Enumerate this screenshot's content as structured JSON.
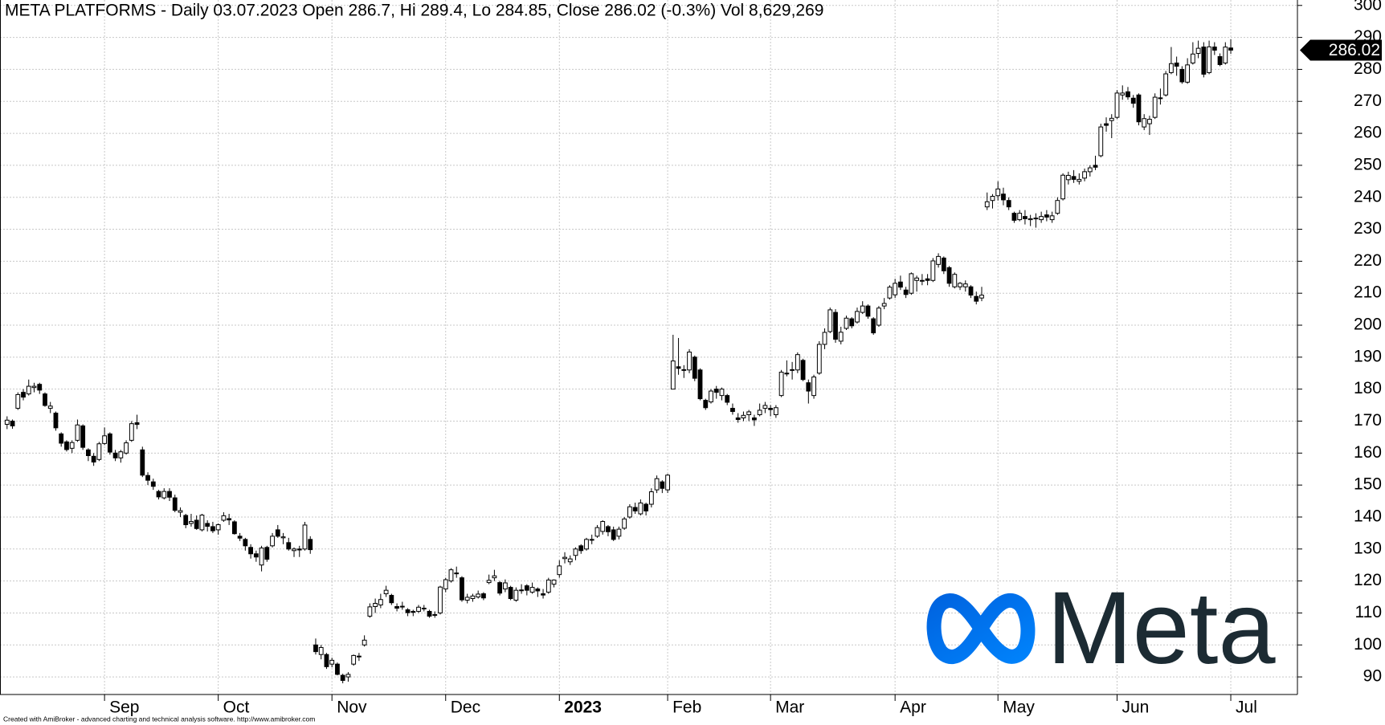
{
  "chart_data": {
    "type": "candlestick",
    "title": "META PLATFORMS - Daily 03.07.2023 Open 286.7, Hi 289.4, Lo 284.85, Close 286.02 (-0.3%) Vol 8,629,269",
    "footer": "Created with AmiBroker - advanced charting and technical analysis software. http://www.amibroker.com",
    "logo_text": "Meta",
    "categories": [
      null,
      null,
      null,
      null,
      null,
      null,
      null,
      null,
      null,
      null,
      null,
      null,
      null,
      null,
      null,
      null,
      null,
      null,
      "Sep",
      null,
      null,
      null,
      null,
      null,
      null,
      null,
      null,
      null,
      null,
      null,
      null,
      null,
      null,
      null,
      null,
      null,
      null,
      null,
      null,
      "Oct",
      null,
      null,
      null,
      null,
      null,
      null,
      null,
      null,
      null,
      null,
      null,
      null,
      null,
      null,
      null,
      null,
      null,
      null,
      null,
      null,
      "Nov",
      null,
      null,
      null,
      null,
      null,
      null,
      null,
      null,
      null,
      null,
      null,
      null,
      null,
      null,
      null,
      null,
      null,
      null,
      null,
      null,
      "Dec",
      null,
      null,
      null,
      null,
      null,
      null,
      null,
      null,
      null,
      null,
      null,
      null,
      null,
      null,
      null,
      null,
      null,
      null,
      null,
      null,
      "2023",
      null,
      null,
      null,
      null,
      null,
      null,
      null,
      null,
      null,
      null,
      null,
      null,
      null,
      null,
      null,
      null,
      null,
      null,
      null,
      "Feb",
      null,
      null,
      null,
      null,
      null,
      null,
      null,
      null,
      null,
      null,
      null,
      null,
      null,
      null,
      null,
      null,
      null,
      null,
      "Mar",
      null,
      null,
      null,
      null,
      null,
      null,
      null,
      null,
      null,
      null,
      null,
      null,
      null,
      null,
      null,
      null,
      null,
      null,
      null,
      null,
      null,
      null,
      "Apr",
      null,
      null,
      null,
      null,
      null,
      null,
      null,
      null,
      null,
      null,
      null,
      null,
      null,
      null,
      null,
      null,
      null,
      null,
      "May",
      null,
      null,
      null,
      null,
      null,
      null,
      null,
      null,
      null,
      null,
      null,
      null,
      null,
      null,
      null,
      null,
      null,
      null,
      null,
      null,
      null,
      "Jun",
      null,
      null,
      null,
      null,
      null,
      null,
      null,
      null,
      null,
      null,
      null,
      null,
      null,
      null,
      null,
      null,
      null,
      null,
      null,
      null,
      "Jul"
    ],
    "open": [
      169.0,
      170.0,
      174.0,
      179.0,
      178.5,
      180.5,
      181.5,
      178.5,
      174.0,
      172.5,
      166.0,
      163.5,
      161.5,
      164.0,
      168.5,
      161.0,
      159.0,
      158.0,
      163.0,
      166.0,
      160.0,
      158.5,
      160.0,
      164.0,
      169.5,
      161.0,
      153.0,
      151.0,
      148.0,
      146.0,
      148.0,
      146.0,
      141.5,
      140.5,
      138.0,
      139.0,
      136.0,
      138.0,
      137.0,
      136.0,
      139.0,
      139.5,
      138.5,
      134.0,
      133.0,
      130.5,
      128.5,
      125.0,
      130.5,
      131.0,
      136.0,
      133.5,
      132.0,
      129.5,
      130.0,
      130.0,
      133.0,
      100.0,
      97.0,
      97.0,
      94.0,
      94.0,
      90.5,
      90.0,
      94.0,
      96.5,
      100.0,
      109.0,
      112.0,
      112.5,
      116.0,
      115.5,
      112.0,
      112.0,
      111.0,
      110.5,
      110.5,
      111.5,
      110.5,
      109.5,
      110.0,
      117.5,
      120.0,
      122.5,
      121.0,
      114.0,
      114.5,
      115.0,
      116.0,
      119.5,
      121.0,
      119.5,
      117.5,
      118.0,
      114.0,
      117.0,
      118.5,
      116.5,
      117.5,
      116.0,
      116.5,
      119.0,
      122.0,
      127.0,
      126.0,
      128.0,
      131.0,
      130.0,
      133.0,
      134.0,
      135.5,
      137.0,
      136.0,
      134.0,
      136.5,
      140.0,
      143.0,
      141.0,
      144.0,
      144.0,
      148.5,
      151.0,
      148.5,
      180.0,
      187.0,
      186.0,
      186.0,
      190.0,
      186.0,
      176.5,
      176.0,
      180.0,
      178.0,
      178.0,
      174.0,
      171.0,
      171.0,
      172.0,
      171.0,
      172.0,
      174.0,
      174.0,
      172.0,
      178.0,
      185.0,
      186.0,
      186.0,
      189.0,
      182.0,
      178.0,
      185.0,
      194.0,
      198.0,
      204.0,
      195.0,
      199.0,
      202.0,
      201.0,
      204.0,
      206.0,
      202.0,
      200.0,
      206.0,
      208.5,
      209.5,
      213.5,
      211.0,
      210.0,
      214.0,
      214.0,
      214.5,
      214.0,
      219.0,
      221.0,
      218.0,
      212.0,
      212.0,
      212.0,
      212.0,
      209.0,
      208.5,
      237.0,
      239.0,
      240.5,
      241.0,
      239.0,
      235.0,
      233.0,
      234.0,
      233.0,
      233.5,
      233.0,
      234.5,
      233.0,
      235.0,
      239.5,
      245.5,
      246.5,
      245.0,
      246.0,
      248.0,
      250.0,
      253.0,
      263.0,
      264.0,
      265.0,
      272.0,
      273.0,
      271.0,
      272.0,
      262.0,
      263.0,
      265.0,
      271.0,
      272.0,
      279.0,
      282.0,
      280.0,
      276.0,
      282.0,
      285.0,
      287.0,
      279.0,
      287.0,
      284.0,
      282.0,
      286.7
    ],
    "high": [
      171.5,
      170.5,
      179.0,
      180.0,
      183.0,
      182.0,
      182.0,
      179.0,
      176.0,
      173.0,
      166.5,
      164.0,
      164.0,
      170.5,
      169.0,
      161.5,
      160.0,
      163.5,
      168.0,
      166.5,
      161.0,
      161.0,
      164.0,
      170.0,
      172.0,
      162.0,
      154.0,
      152.0,
      148.5,
      149.0,
      149.0,
      147.0,
      143.0,
      141.0,
      141.0,
      140.5,
      141.0,
      139.0,
      138.5,
      138.0,
      141.5,
      141.0,
      139.0,
      135.0,
      133.5,
      131.5,
      129.5,
      131.0,
      131.0,
      135.0,
      137.5,
      135.0,
      133.5,
      130.5,
      131.0,
      138.5,
      134.0,
      102.0,
      100.0,
      97.5,
      96.0,
      94.5,
      91.0,
      91.5,
      97.0,
      97.5,
      103.0,
      113.0,
      114.5,
      116.0,
      118.5,
      116.0,
      113.0,
      113.5,
      111.5,
      111.0,
      112.5,
      112.5,
      111.0,
      110.5,
      118.5,
      121.0,
      124.0,
      124.5,
      121.5,
      116.0,
      116.0,
      117.0,
      116.5,
      122.0,
      123.5,
      120.0,
      120.5,
      118.5,
      118.0,
      119.0,
      119.0,
      119.5,
      118.0,
      117.5,
      121.0,
      120.5,
      126.5,
      129.0,
      128.0,
      130.5,
      131.5,
      133.5,
      134.5,
      137.5,
      139.0,
      137.5,
      137.0,
      137.0,
      140.0,
      144.0,
      144.5,
      145.5,
      144.5,
      149.0,
      153.0,
      151.5,
      153.5,
      197.0,
      196.0,
      187.5,
      192.5,
      190.5,
      186.5,
      177.0,
      180.0,
      181.0,
      180.5,
      178.5,
      175.5,
      172.5,
      173.0,
      173.5,
      172.0,
      175.5,
      176.0,
      175.0,
      175.0,
      186.0,
      189.0,
      188.5,
      191.5,
      189.5,
      183.0,
      184.5,
      195.0,
      199.0,
      205.5,
      205.0,
      199.5,
      203.0,
      202.5,
      205.5,
      207.5,
      206.5,
      202.5,
      206.0,
      208.5,
      212.5,
      214.5,
      215.5,
      212.0,
      216.5,
      215.5,
      216.0,
      216.0,
      221.0,
      222.5,
      221.5,
      218.5,
      216.5,
      213.5,
      214.0,
      212.5,
      210.5,
      212.0,
      241.5,
      241.0,
      245.0,
      243.0,
      240.0,
      235.5,
      236.0,
      236.0,
      234.5,
      235.0,
      235.5,
      236.0,
      235.5,
      240.0,
      247.5,
      248.0,
      248.5,
      247.5,
      249.0,
      250.0,
      253.0,
      263.0,
      265.0,
      266.0,
      273.5,
      275.0,
      274.5,
      272.0,
      272.5,
      266.0,
      265.5,
      272.5,
      274.0,
      279.5,
      287.0,
      284.0,
      281.0,
      283.5,
      288.5,
      289.0,
      288.5,
      289.0,
      288.5,
      285.0,
      288.5,
      289.4
    ],
    "low": [
      167.5,
      167.6,
      173.5,
      176.5,
      178.0,
      179.0,
      178.5,
      174.5,
      172.5,
      167.0,
      162.0,
      160.5,
      160.0,
      163.5,
      161.0,
      157.5,
      156.0,
      157.5,
      162.5,
      159.5,
      157.5,
      157.0,
      159.5,
      163.5,
      167.5,
      152.5,
      150.0,
      148.5,
      145.5,
      145.5,
      145.0,
      141.5,
      140.0,
      136.5,
      137.0,
      136.0,
      135.5,
      135.5,
      135.0,
      134.5,
      138.5,
      137.5,
      134.5,
      132.5,
      129.5,
      127.0,
      126.0,
      123.0,
      126.0,
      130.5,
      133.5,
      131.5,
      129.5,
      127.5,
      127.5,
      129.5,
      128.5,
      97.0,
      95.5,
      92.5,
      93.0,
      90.5,
      88.0,
      88.5,
      93.5,
      95.0,
      99.5,
      108.5,
      110.0,
      111.5,
      115.0,
      112.5,
      110.5,
      111.0,
      109.0,
      109.0,
      110.0,
      110.5,
      108.5,
      108.5,
      109.5,
      116.5,
      119.5,
      121.0,
      113.5,
      113.0,
      113.5,
      114.5,
      114.0,
      119.0,
      120.0,
      115.5,
      116.5,
      114.0,
      113.5,
      116.0,
      115.5,
      116.0,
      115.0,
      114.5,
      116.0,
      118.0,
      121.0,
      125.5,
      125.0,
      126.5,
      128.5,
      129.5,
      131.5,
      133.5,
      134.5,
      134.0,
      132.5,
      133.0,
      136.0,
      139.5,
      141.0,
      140.5,
      140.5,
      143.0,
      147.5,
      147.5,
      147.5,
      180.0,
      184.5,
      183.5,
      185.0,
      182.5,
      176.5,
      173.5,
      175.5,
      177.0,
      176.5,
      175.0,
      172.0,
      169.5,
      170.0,
      170.0,
      168.5,
      171.5,
      172.5,
      171.5,
      171.0,
      177.5,
      184.0,
      183.0,
      185.0,
      182.5,
      175.5,
      177.0,
      184.5,
      192.5,
      197.5,
      194.5,
      194.0,
      198.5,
      199.0,
      200.5,
      203.5,
      202.0,
      197.0,
      199.5,
      205.0,
      208.0,
      208.5,
      211.0,
      208.5,
      209.5,
      210.5,
      212.5,
      212.5,
      213.5,
      218.0,
      216.0,
      212.0,
      211.5,
      211.0,
      210.5,
      208.5,
      206.5,
      207.5,
      236.0,
      236.5,
      239.0,
      237.5,
      236.0,
      232.0,
      232.5,
      231.5,
      231.0,
      230.5,
      232.0,
      232.5,
      232.0,
      234.5,
      239.0,
      244.0,
      244.5,
      244.0,
      245.0,
      246.5,
      248.5,
      252.5,
      260.5,
      258.5,
      264.5,
      270.5,
      270.5,
      268.0,
      262.5,
      261.0,
      259.5,
      264.5,
      269.0,
      271.5,
      278.5,
      278.0,
      275.5,
      275.5,
      281.5,
      283.5,
      277.5,
      278.5,
      284.5,
      281.0,
      281.5,
      284.85
    ],
    "close": [
      170.3,
      168.5,
      178.3,
      177.5,
      180.9,
      180.9,
      179.7,
      174.9,
      174.7,
      167.9,
      163.1,
      161.1,
      163.3,
      168.8,
      161.8,
      159.2,
      157.2,
      162.9,
      165.4,
      160.3,
      158.5,
      160.4,
      163.2,
      169.2,
      168.96,
      153.1,
      151.5,
      149.6,
      146.3,
      148.0,
      146.2,
      142.1,
      142.0,
      137.6,
      138.6,
      136.4,
      140.6,
      137.1,
      135.7,
      137.6,
      140.4,
      139.1,
      134.8,
      133.4,
      131.0,
      128.5,
      127.5,
      130.3,
      126.8,
      134.0,
      134.0,
      133.8,
      130.0,
      130.0,
      129.7,
      137.5,
      129.8,
      97.9,
      99.2,
      93.2,
      95.2,
      90.8,
      88.9,
      90.8,
      96.7,
      96.5,
      101.5,
      111.9,
      113.0,
      114.2,
      117.1,
      113.2,
      111.5,
      112.1,
      110.1,
      110.2,
      111.8,
      111.4,
      109.0,
      109.5,
      118.1,
      120.4,
      123.5,
      122.4,
      114.1,
      114.9,
      115.3,
      115.9,
      114.7,
      120.2,
      121.6,
      116.2,
      119.4,
      114.5,
      117.1,
      117.2,
      117.1,
      118.0,
      116.9,
      115.6,
      120.3,
      120.3,
      124.7,
      127.4,
      126.9,
      130.0,
      129.5,
      133.0,
      132.9,
      136.7,
      138.6,
      135.4,
      133.0,
      136.2,
      139.4,
      143.2,
      141.9,
      144.4,
      141.9,
      147.9,
      152.0,
      148.97,
      153.1,
      188.8,
      186.5,
      186.1,
      191.6,
      183.4,
      177.0,
      174.2,
      179.4,
      179.0,
      180.0,
      175.9,
      173.0,
      170.5,
      171.8,
      172.9,
      170.4,
      173.4,
      174.9,
      173.6,
      174.2,
      185.3,
      184.9,
      186.1,
      190.8,
      183.0,
      179.4,
      183.8,
      194.0,
      197.75,
      204.8,
      195.6,
      197.8,
      202.2,
      199.8,
      204.3,
      206.0,
      202.8,
      197.6,
      205.35,
      206.8,
      211.9,
      213.1,
      211.9,
      209.6,
      216.1,
      214.75,
      213.85,
      214.0,
      220.1,
      221.5,
      217.0,
      213.1,
      215.9,
      213.1,
      212.9,
      209.4,
      207.5,
      209.4,
      238.6,
      240.3,
      242.6,
      239.2,
      237.0,
      232.8,
      235.0,
      233.3,
      233.3,
      233.5,
      234.0,
      233.8,
      234.2,
      239.0,
      246.9,
      246.85,
      245.6,
      245.6,
      248.0,
      249.2,
      249.4,
      262.0,
      262.5,
      264.7,
      272.6,
      272.6,
      271.4,
      269.4,
      263.6,
      264.6,
      264.4,
      271.3,
      271.1,
      278.6,
      281.8,
      281.0,
      276.1,
      281.4,
      284.8,
      286.6,
      278.5,
      287.05,
      286.0,
      281.5,
      286.98,
      286.02
    ],
    "up_color": "#ffffff",
    "down_color": "#000000",
    "ylim": [
      84.5,
      301.7
    ],
    "yticks": [
      90,
      100,
      110,
      120,
      130,
      140,
      150,
      160,
      170,
      180,
      190,
      200,
      210,
      220,
      230,
      240,
      250,
      260,
      270,
      280,
      290,
      300
    ],
    "grid": true
  }
}
